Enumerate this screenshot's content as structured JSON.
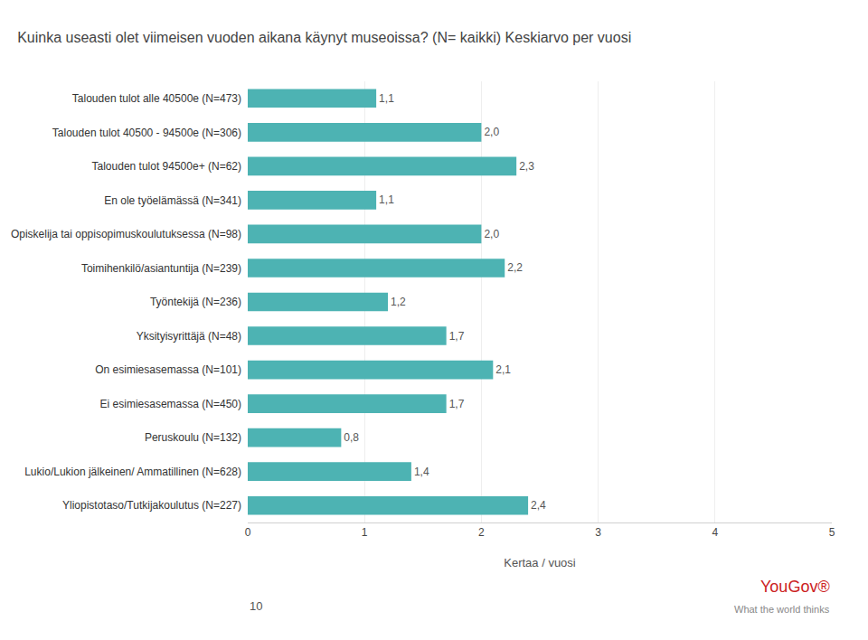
{
  "chart_data": {
    "type": "bar",
    "orientation": "horizontal",
    "title": "Kuinka useasti olet viimeisen vuoden aikana käynyt museoissa? (N= kaikki) Keskiarvo per vuosi",
    "x_label": "Kertaa / vuosi",
    "categories": [
      "Talouden tulot alle 40500e (N=473)",
      "Talouden tulot 40500 - 94500e (N=306)",
      "Talouden tulot 94500e+ (N=62)",
      "En ole työelämässä (N=341)",
      "Opiskelija tai oppisopimuskoulutuksessa (N=98)",
      "Toimihenkilö/asiantuntija (N=239)",
      "Työntekijä (N=236)",
      "Yksityisyrittäjä (N=48)",
      "On esimiesasemassa (N=101)",
      "Ei esimiesasemassa (N=450)",
      "Peruskoulu (N=132)",
      "Lukio/Lukion jälkeinen/ Ammatillinen (N=628)",
      "Yliopistotaso/Tutkijakoulutus (N=227)"
    ],
    "values": [
      1.1,
      2.0,
      2.3,
      1.1,
      2.0,
      2.2,
      1.2,
      1.7,
      2.1,
      1.7,
      0.8,
      1.4,
      2.4
    ],
    "value_labels": [
      "1,1",
      "2,0",
      "2,3",
      "1,1",
      "2,0",
      "2,2",
      "1,2",
      "1,7",
      "2,1",
      "1,7",
      "0,8",
      "1,4",
      "2,4"
    ],
    "data_labels": true,
    "color": "#4db3b3",
    "xlim": [
      0,
      5
    ],
    "xticks": [
      0,
      1,
      2,
      3,
      4,
      5
    ],
    "grid": true,
    "annotations": [
      "10",
      "YouGov®",
      "What the world thinks"
    ]
  }
}
